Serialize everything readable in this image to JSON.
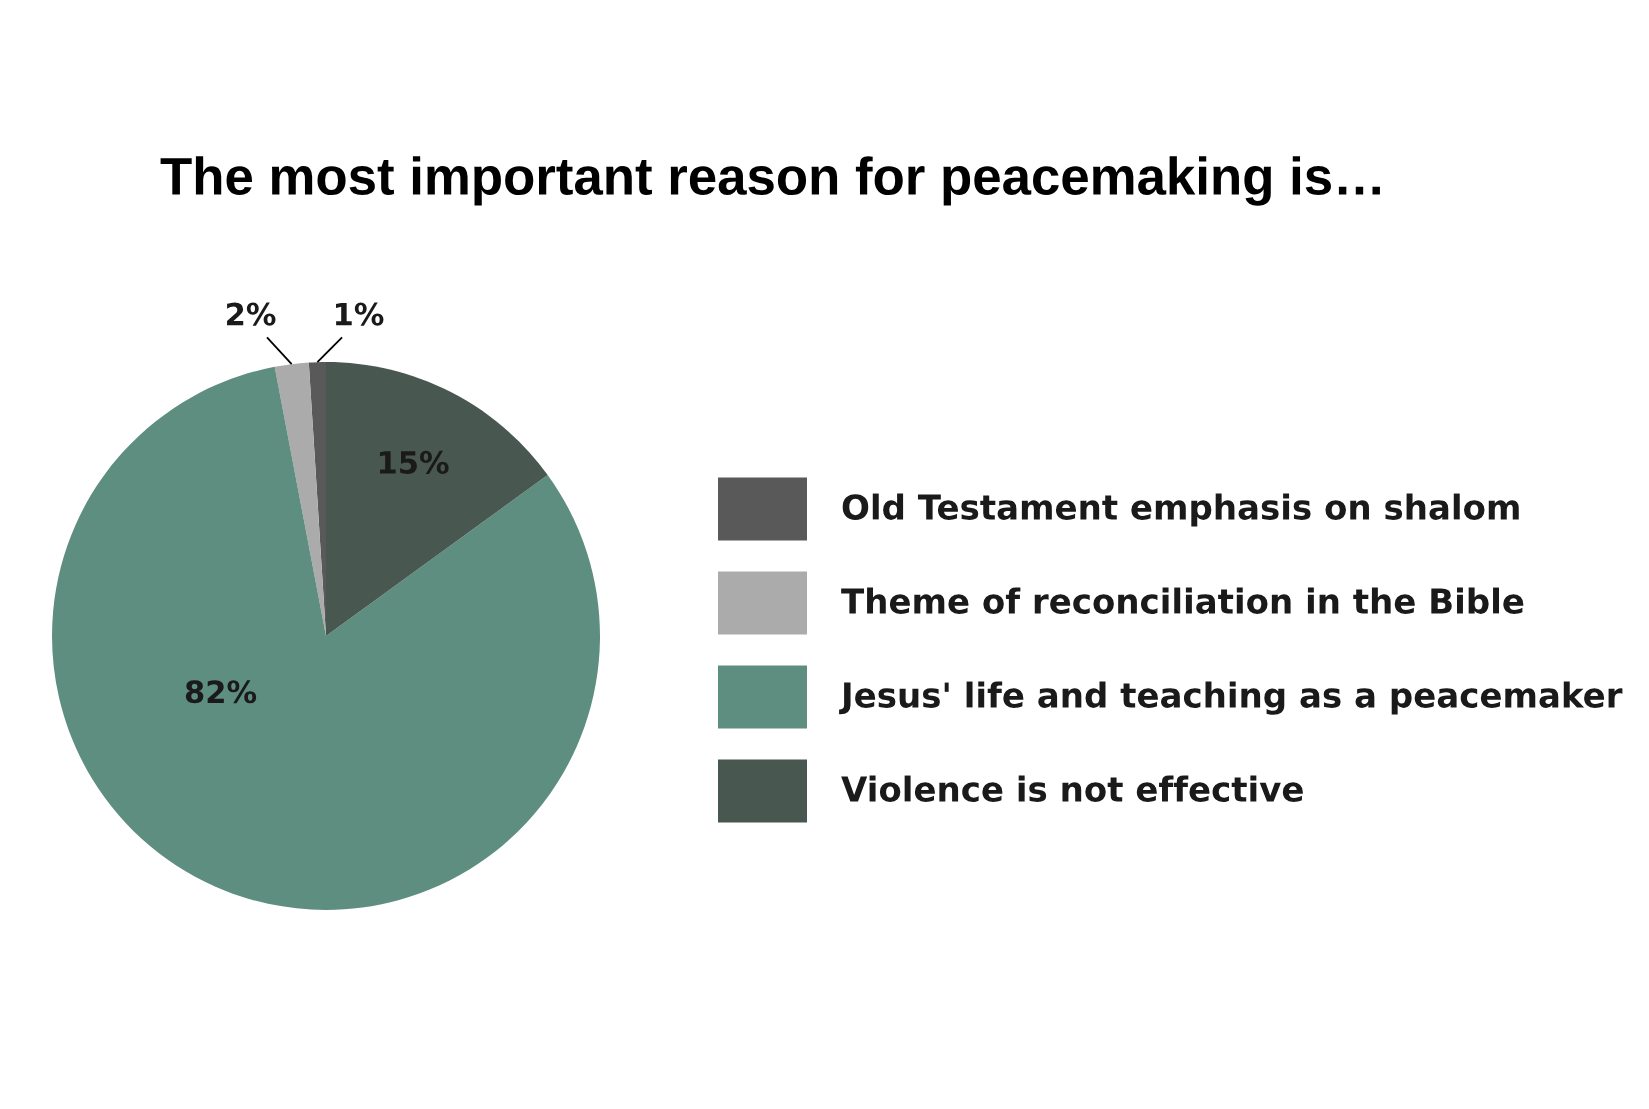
{
  "chart_data": {
    "type": "pie",
    "title": "The most important reason for peacemaking is…",
    "categories": [
      "Old Testament emphasis on shalom",
      "Theme of reconciliation in the Bible",
      "Jesus' life and teaching as a peacemaker",
      "Violence is not effective"
    ],
    "values": [
      1,
      2,
      82,
      15
    ],
    "value_labels": [
      "1%",
      "2%",
      "82%",
      "15%"
    ],
    "colors": [
      "#595959",
      "#ababab",
      "#5e8e80",
      "#485750"
    ],
    "legend": "right"
  }
}
